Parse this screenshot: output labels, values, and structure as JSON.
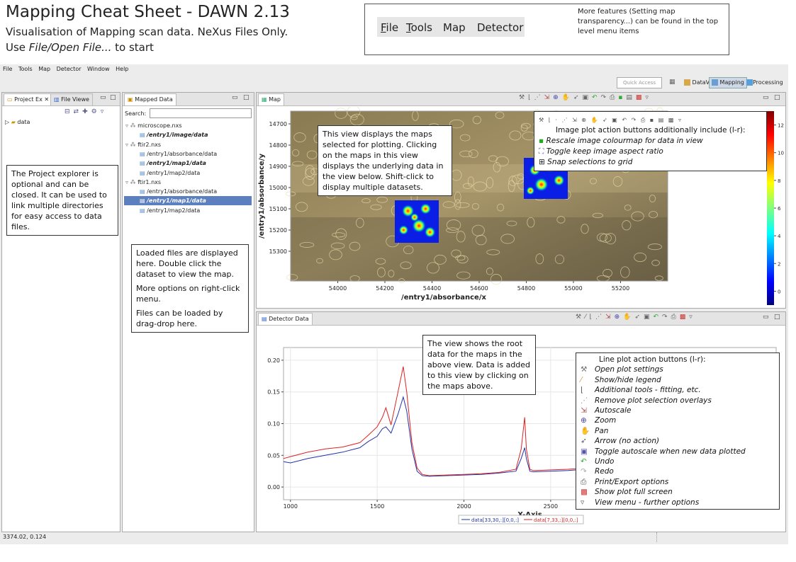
{
  "header": {
    "title": "Mapping Cheat Sheet - DAWN 2.13",
    "subtitle": "Visualisation of Mapping scan data. NeXus Files Only.",
    "start_prefix": "Use ",
    "start_emph": "File/Open File...",
    "start_suffix": " to start"
  },
  "menu_example": {
    "items": [
      "File",
      "Tools",
      "Map",
      "Detector"
    ],
    "note": "More features (Setting map transparency...) can be found in the top level menu items"
  },
  "main_menu": [
    "File",
    "Tools",
    "Map",
    "Detector",
    "Window",
    "Help"
  ],
  "toolbar": {
    "quick_access": "Quick Access",
    "perspectives": [
      "DataVis",
      "Mapping",
      "Processing"
    ],
    "active_perspective": "Mapping"
  },
  "project_panel": {
    "tabs": [
      "Project Ex",
      "File Viewe"
    ],
    "tree": [
      "data"
    ],
    "callout": "The Project explorer is optional and can be closed. It can be used to link multiple directories for easy access to data files."
  },
  "mapped_panel": {
    "tab": "Mapped Data",
    "search_label": "Search:",
    "search_value": "",
    "tree": [
      {
        "label": "microscope.nxs",
        "level": 0,
        "bold": false,
        "selected": false
      },
      {
        "label": "/entry1/image/data",
        "level": 1,
        "bold": true,
        "selected": false
      },
      {
        "label": "ftir2.nxs",
        "level": 0,
        "bold": false,
        "selected": false
      },
      {
        "label": "/entry1/absorbance/data",
        "level": 1,
        "bold": false,
        "selected": false
      },
      {
        "label": "/entry1/map1/data",
        "level": 1,
        "bold": true,
        "selected": false
      },
      {
        "label": "/entry1/map2/data",
        "level": 1,
        "bold": false,
        "selected": false
      },
      {
        "label": "ftir1.nxs",
        "level": 0,
        "bold": false,
        "selected": false
      },
      {
        "label": "/entry1/absorbance/data",
        "level": 1,
        "bold": false,
        "selected": false
      },
      {
        "label": "/entry1/map1/data",
        "level": 1,
        "bold": true,
        "selected": true
      },
      {
        "label": "/entry1/map2/data",
        "level": 1,
        "bold": false,
        "selected": false
      }
    ],
    "callout": [
      "Loaded files are displayed here. Double click the dataset to view the map.",
      "More options on right-click menu.",
      "Files can be loaded by drag-drop here."
    ]
  },
  "map_panel": {
    "tab": "Map",
    "callout": "This view displays the maps selected for plotting. Clicking on the maps in this view displays the underlying data in the view below. Shift-click to display multiple datasets.",
    "image_buttons_title": "Image plot action buttons additionally include (l-r):",
    "image_buttons": [
      "Rescale image colourmap for data in view",
      "Toggle keep image aspect ratio",
      "Snap selections to grid"
    ]
  },
  "detector_panel": {
    "tab": "Detector Data",
    "callout": "The view shows the root data for the maps in the above view. Data is added to this view by clicking on the maps above.",
    "line_buttons_title": "Line plot action buttons (l-r):",
    "line_buttons": [
      "Open plot settings",
      "Show/hide legend",
      "Additional tools - fitting, etc.",
      "Remove plot selection overlays",
      "Autoscale",
      "Zoom",
      "Pan",
      "Arrow (no action)",
      "Toggle autoscale when new data plotted",
      "Undo",
      "Redo",
      "Print/Export options",
      "Show plot full screen",
      "View menu - further options"
    ]
  },
  "status_bar": {
    "coords": "3374.02, 0.124"
  },
  "chart_data": [
    {
      "type": "heatmap",
      "title": "",
      "xlabel": "/entry1/absorbance/x",
      "ylabel": "/entry1/absorbance/y",
      "x_ticks": [
        54000,
        54200,
        54400,
        54600,
        54800,
        55000,
        55200
      ],
      "y_ticks": [
        14700,
        14800,
        14900,
        15000,
        15100,
        15200,
        15300
      ],
      "colorbar_ticks": [
        0,
        2,
        4,
        6,
        8,
        10,
        12
      ],
      "colorbar_range": [
        -1,
        13
      ]
    },
    {
      "type": "line",
      "title": "",
      "xlabel": "X-Axis",
      "ylabel": "",
      "x_ticks": [
        1000,
        1500,
        2000,
        2500
      ],
      "y_ticks": [
        0.0,
        0.05,
        0.1,
        0.15,
        0.2
      ],
      "xlim": [
        960,
        3800
      ],
      "ylim": [
        -0.02,
        0.22
      ],
      "legend_position": "bottom",
      "series": [
        {
          "name": "data[33,30,:][0,0,:]",
          "color": "#2233aa",
          "x": [
            960,
            1000,
            1100,
            1200,
            1300,
            1400,
            1450,
            1500,
            1530,
            1550,
            1580,
            1620,
            1650,
            1670,
            1700,
            1730,
            1760,
            1800,
            1900,
            2000,
            2100,
            2200,
            2300,
            2330,
            2350,
            2360,
            2380,
            2400,
            2500,
            2600,
            2700,
            2800,
            3000,
            3200,
            3400,
            3600,
            3800
          ],
          "y": [
            0.04,
            0.038,
            0.045,
            0.05,
            0.055,
            0.062,
            0.072,
            0.08,
            0.092,
            0.095,
            0.085,
            0.115,
            0.142,
            0.12,
            0.06,
            0.025,
            0.018,
            0.017,
            0.018,
            0.019,
            0.02,
            0.022,
            0.025,
            0.045,
            0.062,
            0.045,
            0.025,
            0.024,
            0.025,
            0.026,
            0.028,
            0.03,
            0.033,
            0.036,
            0.04,
            0.045,
            0.05
          ]
        },
        {
          "name": "data[7,33,:][0,0,:]",
          "color": "#dd2222",
          "x": [
            960,
            1000,
            1100,
            1200,
            1300,
            1400,
            1450,
            1500,
            1530,
            1550,
            1580,
            1620,
            1650,
            1670,
            1700,
            1730,
            1760,
            1800,
            1900,
            2000,
            2100,
            2200,
            2300,
            2330,
            2350,
            2360,
            2380,
            2400,
            2500,
            2600,
            2700,
            2800,
            3000,
            3200,
            3400,
            3600,
            3800
          ],
          "y": [
            0.045,
            0.048,
            0.055,
            0.06,
            0.063,
            0.07,
            0.082,
            0.095,
            0.11,
            0.125,
            0.098,
            0.15,
            0.19,
            0.15,
            0.07,
            0.03,
            0.02,
            0.018,
            0.019,
            0.02,
            0.021,
            0.023,
            0.028,
            0.06,
            0.11,
            0.06,
            0.028,
            0.026,
            0.027,
            0.028,
            0.03,
            0.032,
            0.036,
            0.04,
            0.045,
            0.05,
            0.055
          ]
        }
      ]
    }
  ]
}
